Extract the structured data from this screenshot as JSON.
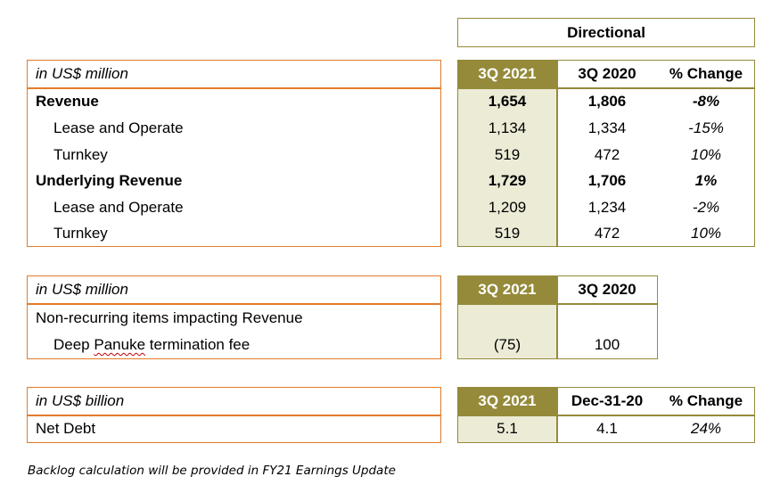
{
  "directional_label": "Directional",
  "table1": {
    "unit": "in US$ million",
    "headers": [
      "3Q 2021",
      "3Q 2020",
      "% Change"
    ],
    "rows": [
      {
        "label": "Revenue",
        "v1": "1,654",
        "v2": "1,806",
        "chg": "-8%",
        "bold": true
      },
      {
        "label": "Lease and Operate",
        "v1": "1,134",
        "v2": "1,334",
        "chg": "-15%",
        "bold": false
      },
      {
        "label": "Turnkey",
        "v1": "519",
        "v2": "472",
        "chg": "10%",
        "bold": false
      },
      {
        "label": "Underlying Revenue",
        "v1": "1,729",
        "v2": "1,706",
        "chg": "1%",
        "bold": true
      },
      {
        "label": "Lease and Operate",
        "v1": "1,209",
        "v2": "1,234",
        "chg": "-2%",
        "bold": false
      },
      {
        "label": "Turnkey",
        "v1": "519",
        "v2": "472",
        "chg": "10%",
        "bold": false
      }
    ]
  },
  "table2": {
    "unit": "in US$ million",
    "headers": [
      "3Q 2021",
      "3Q 2020"
    ],
    "row1_label": "Non-recurring items impacting Revenue",
    "row2_label_prefix": "Deep ",
    "row2_label_word": "Panuke",
    "row2_label_suffix": " termination fee",
    "row2_v1": "(75)",
    "row2_v2": "100"
  },
  "table3": {
    "unit": "in US$ billion",
    "headers": [
      "3Q 2021",
      "Dec-31-20",
      "% Change"
    ],
    "row_label": "Net Debt",
    "v1": "5.1",
    "v2": "4.1",
    "chg": "24%"
  },
  "footnote": "Backlog calculation will be provided in FY21 Earnings Update"
}
